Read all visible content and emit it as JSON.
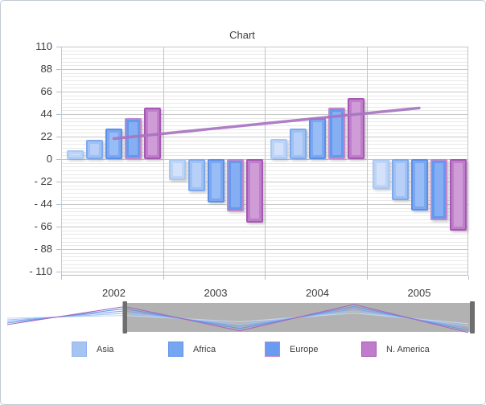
{
  "chart_data": {
    "type": "bar",
    "title": "Chart",
    "categories": [
      "2002",
      "2003",
      "2004",
      "2005"
    ],
    "series": [
      {
        "name": "(unlabeled)",
        "values": [
          9,
          -20,
          20,
          -29
        ],
        "fill": "#bdd4f6",
        "border": "#a9c8f3",
        "inner": "#d3e2fa",
        "nav_line": "#c3d6f4"
      },
      {
        "name": "Asia",
        "values": [
          19,
          -31,
          30,
          -40
        ],
        "fill": "#9ec1f3",
        "border": "#7fa9ee",
        "inner": "#b8d0f8",
        "nav_line": "#a3c3f1"
      },
      {
        "name": "Africa",
        "values": [
          30,
          -42,
          40,
          -50
        ],
        "fill": "#7aa7f0",
        "border": "#5c8fe8",
        "inner": "#98bcf5",
        "nav_line": "#7fa9ee"
      },
      {
        "name": "Europe",
        "values": [
          40,
          -51,
          50,
          -60
        ],
        "fill": "#6399ee",
        "border": "#c287cd",
        "inner": "#85aef3",
        "nav_line": "#6197ec"
      },
      {
        "name": "N. America",
        "values": [
          50,
          -62,
          60,
          -70
        ],
        "fill": "#bf7ec9",
        "border": "#a557b3",
        "inner": "#cf9cd8",
        "nav_line": "#a967b9"
      }
    ],
    "trend_line": {
      "values": [
        20,
        30,
        40,
        50
      ],
      "color": "#a873c0"
    },
    "y_axis": {
      "min": -110,
      "max": 110,
      "major_step": 22,
      "labels": [
        "110",
        "88",
        "66",
        "44",
        "22",
        "0",
        "- 22",
        "- 44",
        "- 66",
        "- 88",
        "- 110"
      ]
    },
    "legend": [
      {
        "label": "Asia",
        "fill": "#a6c4f1",
        "border": "#8fb4ef"
      },
      {
        "label": "Africa",
        "fill": "#76a6ef",
        "border": "#5f93ec"
      },
      {
        "label": "Europe",
        "fill": "#699cf0",
        "border": "#c083cb"
      },
      {
        "label": "N. America",
        "fill": "#be7cca",
        "border": "#a458b4"
      }
    ],
    "navigator": {
      "selection_bg": "#b2b2b2",
      "handle_color": "#6e6e6e",
      "track_bg": "#ffffff"
    },
    "grid": {
      "minor_per_major": 6,
      "on": true
    }
  }
}
